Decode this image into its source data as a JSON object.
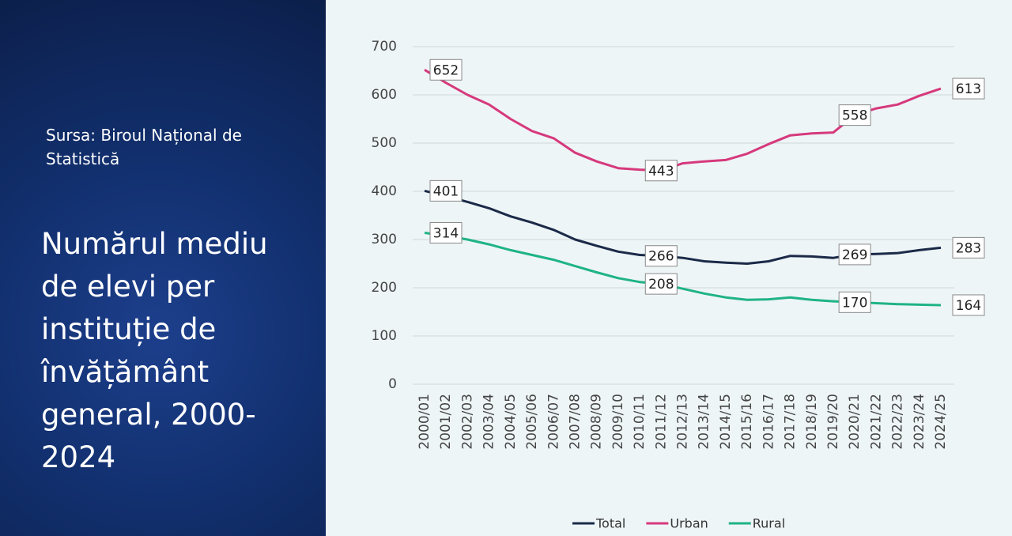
{
  "source": "Sursa: Biroul Național de Statistică",
  "title": "Numărul mediu de elevi per instituție de învățământ general, 2000-2024",
  "chart_data": {
    "type": "line",
    "categories": [
      "2000/01",
      "2001/02",
      "2002/03",
      "2003/04",
      "2004/05",
      "2005/06",
      "2006/07",
      "2007/08",
      "2008/09",
      "2009/10",
      "2010/11",
      "2011/12",
      "2012/13",
      "2013/14",
      "2014/15",
      "2015/16",
      "2016/17",
      "2017/18",
      "2018/19",
      "2019/20",
      "2020/21",
      "2021/22",
      "2022/23",
      "2023/24",
      "2024/25"
    ],
    "series": [
      {
        "name": "Total",
        "color": "#1b2a48",
        "values": [
          401,
          390,
          378,
          365,
          348,
          335,
          320,
          300,
          287,
          275,
          268,
          266,
          262,
          255,
          252,
          250,
          255,
          266,
          265,
          262,
          269,
          270,
          272,
          278,
          283
        ],
        "value_labels": [
          "401",
          null,
          null,
          null,
          null,
          null,
          null,
          null,
          null,
          null,
          null,
          "266",
          null,
          null,
          null,
          null,
          null,
          null,
          null,
          null,
          "269",
          null,
          null,
          null,
          "283"
        ]
      },
      {
        "name": "Urban",
        "color": "#d6397c",
        "values": [
          652,
          625,
          600,
          580,
          550,
          525,
          510,
          480,
          462,
          448,
          445,
          443,
          458,
          462,
          465,
          478,
          498,
          516,
          520,
          522,
          558,
          572,
          580,
          598,
          613
        ],
        "value_labels": [
          "652",
          null,
          null,
          null,
          null,
          null,
          null,
          null,
          null,
          null,
          null,
          "443",
          null,
          null,
          null,
          null,
          null,
          null,
          null,
          null,
          "558",
          null,
          null,
          null,
          "613"
        ]
      },
      {
        "name": "Rural",
        "color": "#1fb386",
        "values": [
          314,
          308,
          300,
          290,
          278,
          268,
          258,
          245,
          232,
          220,
          212,
          208,
          198,
          188,
          180,
          175,
          176,
          180,
          175,
          172,
          170,
          168,
          166,
          165,
          164
        ],
        "value_labels": [
          "314",
          null,
          null,
          null,
          null,
          null,
          null,
          null,
          null,
          null,
          null,
          "208",
          null,
          null,
          null,
          null,
          null,
          null,
          null,
          null,
          "170",
          null,
          null,
          null,
          "164"
        ]
      }
    ],
    "ylim": [
      0,
      700
    ],
    "yticks": [
      0,
      100,
      200,
      300,
      400,
      500,
      600,
      700
    ],
    "grid": true,
    "legend": "bottom"
  }
}
